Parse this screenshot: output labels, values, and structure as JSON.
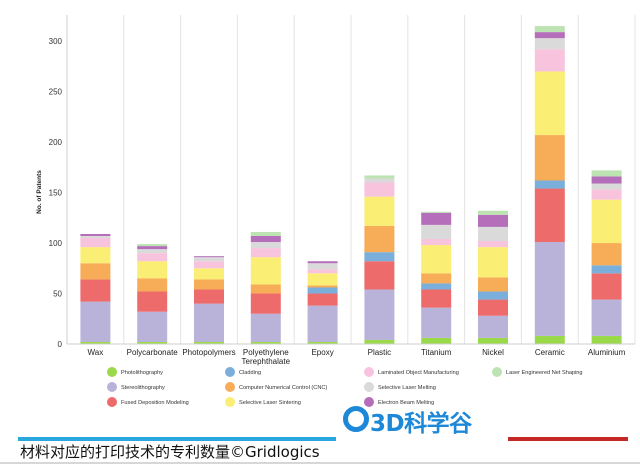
{
  "chart_data": {
    "type": "bar",
    "stacked": true,
    "ylabel": "No. of Patents",
    "ylim": [
      0,
      320
    ],
    "yticks": [
      0,
      50,
      100,
      150,
      200,
      250,
      300
    ],
    "grid": "vertical lines between categories",
    "legend_position": "bottom",
    "categories": [
      "Wax",
      "Polycarbonate",
      "Photopolymers",
      "Polyethylene\nTerephthalate",
      "Epoxy",
      "Plastic",
      "Titanium",
      "Nickel",
      "Ceramic",
      "Aluminium"
    ],
    "series": [
      {
        "name": "Photolithography",
        "color": "#99d94a",
        "values": [
          2,
          2,
          2,
          2,
          2,
          4,
          6,
          6,
          8,
          8
        ]
      },
      {
        "name": "Stereolithography",
        "color": "#b9b3da",
        "values": [
          40,
          30,
          38,
          28,
          36,
          50,
          30,
          22,
          93,
          36
        ]
      },
      {
        "name": "Fused Deposition Modeling",
        "color": "#ee6b6b",
        "values": [
          22,
          20,
          14,
          20,
          12,
          28,
          18,
          16,
          53,
          26
        ]
      },
      {
        "name": "Cladding",
        "color": "#7aaedb",
        "values": [
          0,
          0,
          0,
          0,
          6,
          9,
          6,
          8,
          8,
          8
        ]
      },
      {
        "name": "Computer Numerical Control (CNC)",
        "color": "#f7ac58",
        "values": [
          16,
          13,
          10,
          9,
          2,
          26,
          10,
          14,
          45,
          22
        ]
      },
      {
        "name": "Selective Laser Sintering",
        "color": "#fbee74",
        "values": [
          16,
          17,
          11,
          27,
          12,
          29,
          28,
          30,
          63,
          43
        ]
      },
      {
        "name": "Laminated Object Manufacturing",
        "color": "#f8c3dd",
        "values": [
          9,
          8,
          7,
          9,
          4,
          14,
          6,
          6,
          22,
          10
        ]
      },
      {
        "name": "Selective Laser Melting",
        "color": "#dadada",
        "values": [
          2,
          4,
          4,
          6,
          6,
          4,
          14,
          14,
          11,
          6
        ]
      },
      {
        "name": "Electron Beam Melting",
        "color": "#b56fba",
        "values": [
          2,
          3,
          1,
          6,
          2,
          0,
          12,
          12,
          6,
          7
        ]
      },
      {
        "name": "Laser Engineered Net Shaping",
        "color": "#bee3b3",
        "values": [
          0,
          2,
          0,
          4,
          0,
          3,
          1,
          4,
          6,
          6
        ]
      }
    ]
  },
  "legend_rows": [
    [
      "Photolithography",
      "Cladding",
      "Laminated Object Manufacturing",
      "Laser Engineered Net Shaping"
    ],
    [
      "Stereolithography",
      "Computer Numerical Control (CNC)",
      "Selective Laser Melting"
    ],
    [
      "Fused Deposition Modeling",
      "Selective Laser Sintering",
      "Electron Beam Melting"
    ]
  ],
  "logo": {
    "text": "3D科学谷",
    "color": "#1e88d8"
  },
  "caption": "材料对应的打印技术的专利数量©Gridlogics",
  "colors": {
    "caption_rule_left": "#29a8e0",
    "caption_rule_right": "#c62828"
  }
}
